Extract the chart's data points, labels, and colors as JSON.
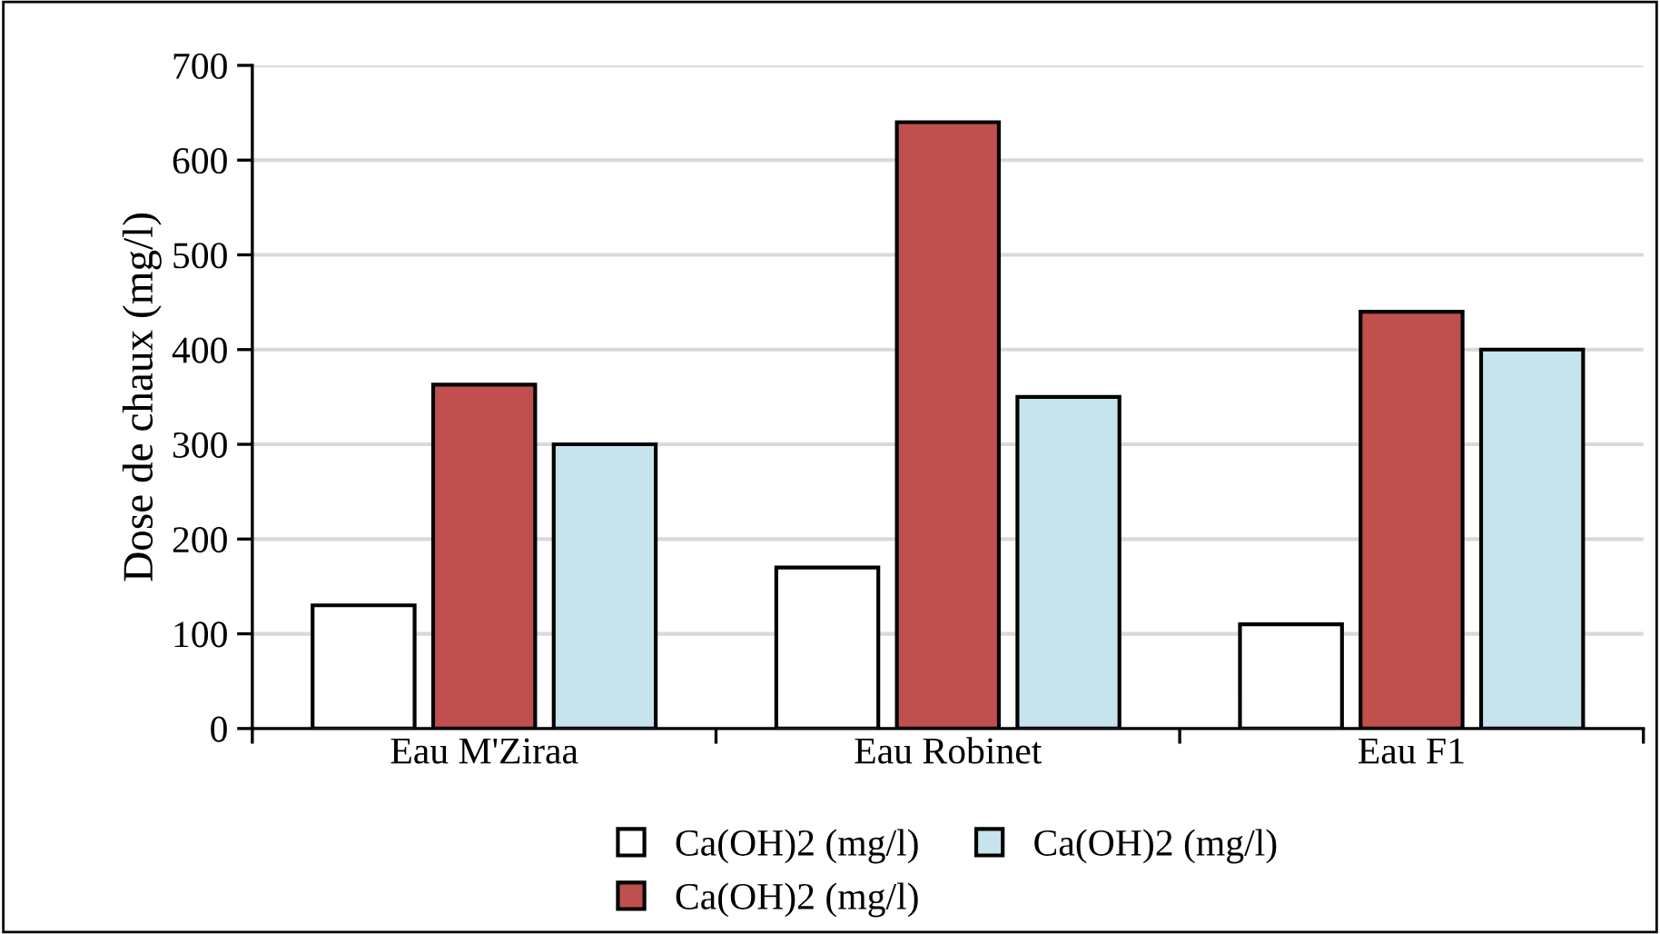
{
  "chart_data": {
    "type": "bar",
    "ylabel": "Dose de chaux (mg/l)",
    "categories": [
      "Eau M'Ziraa",
      "Eau Robinet",
      "Eau F1"
    ],
    "series": [
      {
        "name": "Ca(OH)2 (mg/l)",
        "color": "#ffffff",
        "values": [
          130,
          170,
          110
        ]
      },
      {
        "name": "Ca(OH)2 (mg/l)",
        "color": "#c0504d",
        "values": [
          363,
          640,
          440
        ]
      },
      {
        "name": "Ca(OH)2 (mg/l)",
        "color": "#c5e4ec",
        "values": [
          300,
          350,
          400
        ]
      }
    ],
    "ylim": [
      0,
      700
    ],
    "yticks": [
      0,
      100,
      200,
      300,
      400,
      500,
      600,
      700
    ],
    "grid": "y",
    "legend": "bottom"
  }
}
